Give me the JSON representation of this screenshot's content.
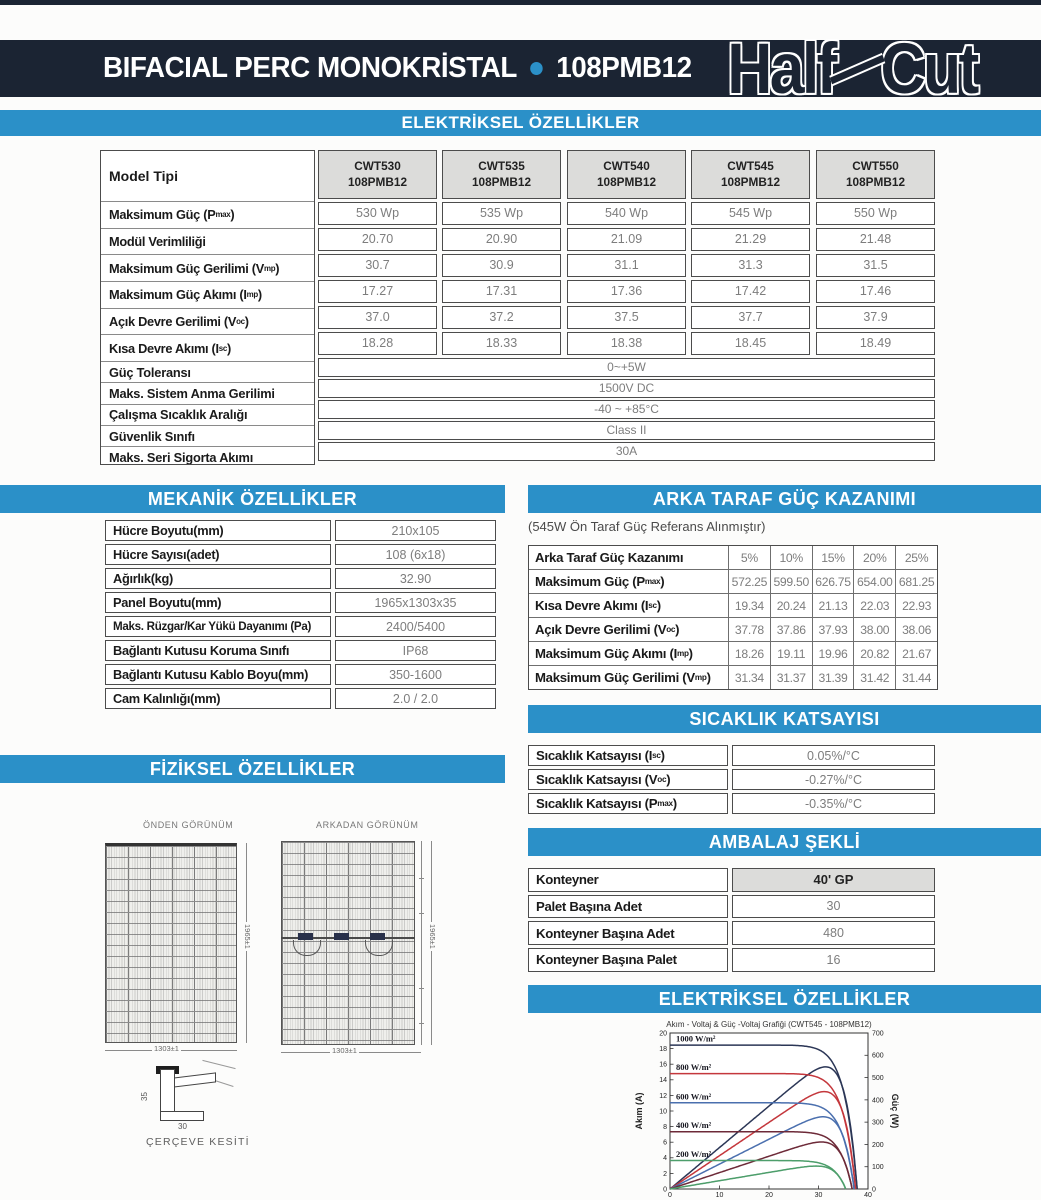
{
  "colors": {
    "navy": "#1b2433",
    "blue": "#2b90c8",
    "header_cell": "#dcdcda",
    "value_text": "#7d7d7d"
  },
  "header": {
    "title_main": "BIFACIAL PERC MONOKRİSTAL",
    "title_model": "108PMB12",
    "logo_part1": "Half",
    "logo_part2": "Cut"
  },
  "sections": {
    "electrical1": "ELEKTRİKSEL ÖZELLİKLER",
    "mechanical": "MEKANİK ÖZELLİKLER",
    "bifacial": "ARKA TARAF GÜÇ KAZANIMI",
    "temperature": "SICAKLIK KATSAYISI",
    "packaging": "AMBALAJ ŞEKLİ",
    "physical": "FİZİKSEL ÖZELLİKLER",
    "electrical2": "ELEKTRİKSEL ÖZELLİKLER"
  },
  "electrical": {
    "corner_label": "Model Tipi",
    "columns": [
      {
        "model": "CWT530",
        "series": "108PMB12"
      },
      {
        "model": "CWT535",
        "series": "108PMB12"
      },
      {
        "model": "CWT540",
        "series": "108PMB12"
      },
      {
        "model": "CWT545",
        "series": "108PMB12"
      },
      {
        "model": "CWT550",
        "series": "108PMB12"
      }
    ],
    "rows": [
      {
        "label": "Maksimum Güç (P{max})",
        "values": [
          "530 Wp",
          "535 Wp",
          "540 Wp",
          "545 Wp",
          "550 Wp"
        ]
      },
      {
        "label": "Modül Verimliliği",
        "values": [
          "20.70",
          "20.90",
          "21.09",
          "21.29",
          "21.48"
        ]
      },
      {
        "label": "Maksimum Güç Gerilimi (V{mp})",
        "values": [
          "30.7",
          "30.9",
          "31.1",
          "31.3",
          "31.5"
        ]
      },
      {
        "label": "Maksimum Güç Akımı (I{mp})",
        "values": [
          "17.27",
          "17.31",
          "17.36",
          "17.42",
          "17.46"
        ]
      },
      {
        "label": "Açık Devre Gerilimi (V{oc})",
        "values": [
          "37.0",
          "37.2",
          "37.5",
          "37.7",
          "37.9"
        ]
      },
      {
        "label": "Kısa Devre Akımı (I{sc})",
        "values": [
          "18.28",
          "18.33",
          "18.38",
          "18.45",
          "18.49"
        ]
      }
    ],
    "span_rows": [
      {
        "label": "Güç Toleransı",
        "value": "0~+5W"
      },
      {
        "label": "Maks. Sistem Anma Gerilimi",
        "value": "1500V DC"
      },
      {
        "label": "Çalışma Sıcaklık Aralığı",
        "value": "-40 ~ +85°C"
      },
      {
        "label": "Güvenlik Sınıfı",
        "value": "Class II"
      },
      {
        "label": "Maks. Seri Sigorta Akımı",
        "value": "30A"
      }
    ]
  },
  "mechanical": {
    "rows": [
      {
        "label": "Hücre Boyutu(mm)",
        "value": "210x105"
      },
      {
        "label": "Hücre Sayısı(adet)",
        "value": "108 (6x18)"
      },
      {
        "label": "Ağırlık(kg)",
        "value": "32.90"
      },
      {
        "label": "Panel Boyutu(mm)",
        "value": "1965x1303x35"
      },
      {
        "label": "Maks. Rüzgar/Kar Yükü Dayanımı (Pa)",
        "value": "2400/5400"
      },
      {
        "label": "Bağlantı Kutusu Koruma Sınıfı",
        "value": "IP68"
      },
      {
        "label": "Bağlantı Kutusu Kablo Boyu(mm)",
        "value": "350-1600"
      },
      {
        "label": "Cam Kalınlığı(mm)",
        "value": "2.0 / 2.0"
      }
    ]
  },
  "bifacial": {
    "note": "(545W Ön Taraf Güç Referans Alınmıştır)",
    "header_row": {
      "label": "Arka Taraf Güç Kazanımı",
      "values": [
        "5%",
        "10%",
        "15%",
        "20%",
        "25%"
      ]
    },
    "rows": [
      {
        "label": "Maksimum Güç (P{max})",
        "values": [
          "572.25",
          "599.50",
          "626.75",
          "654.00",
          "681.25"
        ]
      },
      {
        "label": "Kısa Devre Akımı (I{sc})",
        "values": [
          "19.34",
          "20.24",
          "21.13",
          "22.03",
          "22.93"
        ]
      },
      {
        "label": "Açık Devre Gerilimi (V{oc})",
        "values": [
          "37.78",
          "37.86",
          "37.93",
          "38.00",
          "38.06"
        ]
      },
      {
        "label": "Maksimum Güç Akımı (I{mp})",
        "values": [
          "18.26",
          "19.11",
          "19.96",
          "20.82",
          "21.67"
        ]
      },
      {
        "label": "Maksimum Güç Gerilimi (V{mp})",
        "values": [
          "31.34",
          "31.37",
          "31.39",
          "31.42",
          "31.44"
        ]
      }
    ]
  },
  "temperature": {
    "rows": [
      {
        "label": "Sıcaklık Katsayısı (I{sc})",
        "value": "0.05%/°C"
      },
      {
        "label": "Sıcaklık Katsayısı (V{oc})",
        "value": "-0.27%/°C"
      },
      {
        "label": "Sıcaklık Katsayısı (P{max})",
        "value": "-0.35%/°C"
      }
    ]
  },
  "packaging": {
    "header_row": {
      "label": "Konteyner",
      "value": "40' GP"
    },
    "rows": [
      {
        "label": "Palet Başına Adet",
        "value": "30"
      },
      {
        "label": "Konteyner Başına Adet",
        "value": "480"
      },
      {
        "label": "Konteyner Başına Palet",
        "value": "16"
      }
    ]
  },
  "physical": {
    "front_label": "ÖNDEN GÖRÜNÜM",
    "back_label": "ARKADAN GÖRÜNÜM",
    "frame_label": "ÇERÇEVE KESİTİ",
    "panel_height_dim": "1965±1",
    "panel_width_dim": "1303±1",
    "frame_height_dim": "35",
    "frame_width_dim": "30"
  },
  "chart_data": {
    "type": "line",
    "title": "Akım - Voltaj & Güç -Voltaj Grafiği (CWT545 - 108PMB12)",
    "ylabel_left": "Akım (A)",
    "ylabel_right": "Güç (W)",
    "xlim": [
      0,
      40
    ],
    "ylim_left": [
      0,
      20
    ],
    "ylim_right": [
      0,
      700
    ],
    "x_ticks": [
      0,
      10,
      20,
      30,
      40
    ],
    "y_ticks_left": [
      0,
      2,
      4,
      6,
      8,
      10,
      12,
      14,
      16,
      18,
      20
    ],
    "y_ticks_right": [
      0,
      100,
      200,
      300,
      400,
      500,
      600,
      700
    ],
    "grid": false,
    "legend": "inline curve labels",
    "series": [
      {
        "name": "1000 W/m²",
        "isc": 18.45,
        "voc": 37.8,
        "pmax": 548,
        "color": "#2b3656"
      },
      {
        "name": "800 W/m²",
        "isc": 14.8,
        "voc": 37.5,
        "pmax": 437,
        "color": "#c4373c"
      },
      {
        "name": "600 W/m²",
        "isc": 11.05,
        "voc": 37.2,
        "pmax": 324,
        "color": "#4a6fae"
      },
      {
        "name": "400 W/m²",
        "isc": 7.35,
        "voc": 36.8,
        "pmax": 211,
        "color": "#6d2a38"
      },
      {
        "name": "200 W/m²",
        "isc": 3.65,
        "voc": 35.5,
        "pmax": 103,
        "color": "#4d9e6b"
      }
    ]
  }
}
